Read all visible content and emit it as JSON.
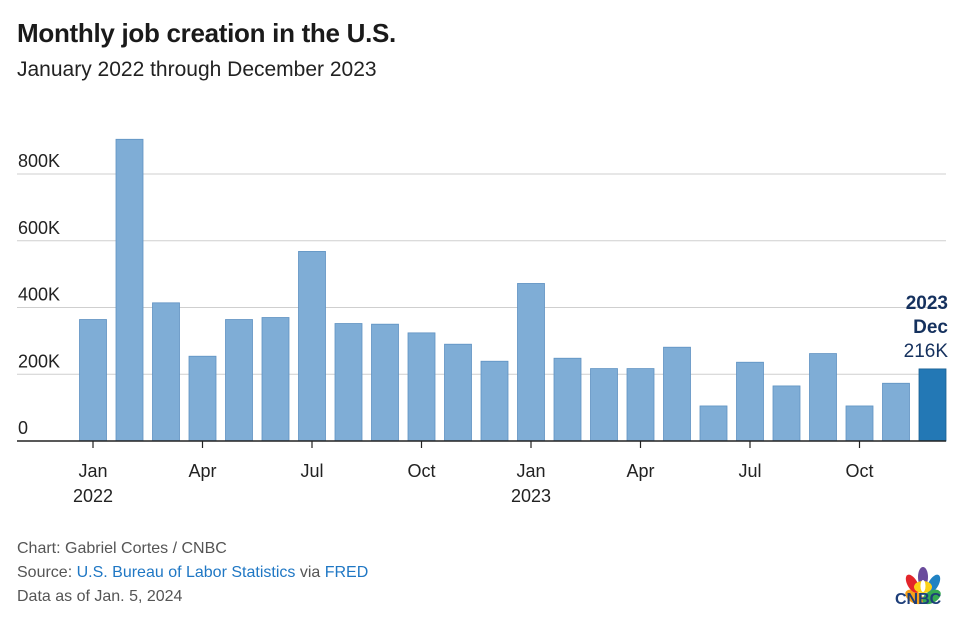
{
  "header": {
    "title": "Monthly job creation in the U.S.",
    "subtitle": "January 2022 through December 2023"
  },
  "chart_data": {
    "type": "bar",
    "title": "Monthly job creation in the U.S.",
    "subtitle": "January 2022 through December 2023",
    "xlabel": "",
    "ylabel": "",
    "ylim": [
      0,
      950000
    ],
    "yticks": [
      0,
      200000,
      400000,
      600000,
      800000
    ],
    "ytick_labels": [
      "0",
      "200K",
      "400K",
      "600K",
      "800K"
    ],
    "grid": true,
    "categories": [
      "Jan 2022",
      "Feb 2022",
      "Mar 2022",
      "Apr 2022",
      "May 2022",
      "Jun 2022",
      "Jul 2022",
      "Aug 2022",
      "Sep 2022",
      "Oct 2022",
      "Nov 2022",
      "Dec 2022",
      "Jan 2023",
      "Feb 2023",
      "Mar 2023",
      "Apr 2023",
      "May 2023",
      "Jun 2023",
      "Jul 2023",
      "Aug 2023",
      "Sep 2023",
      "Oct 2023",
      "Nov 2023",
      "Dec 2023"
    ],
    "x_tick_labels": [
      {
        "index": 0,
        "month": "Jan",
        "year": "2022"
      },
      {
        "index": 3,
        "month": "Apr",
        "year": ""
      },
      {
        "index": 6,
        "month": "Jul",
        "year": ""
      },
      {
        "index": 9,
        "month": "Oct",
        "year": ""
      },
      {
        "index": 12,
        "month": "Jan",
        "year": "2023"
      },
      {
        "index": 15,
        "month": "Apr",
        "year": ""
      },
      {
        "index": 18,
        "month": "Jul",
        "year": ""
      },
      {
        "index": 21,
        "month": "Oct",
        "year": ""
      }
    ],
    "values": [
      364000,
      904000,
      414000,
      254000,
      364000,
      370000,
      568000,
      352000,
      350000,
      324000,
      290000,
      239000,
      472000,
      248000,
      217000,
      217000,
      281000,
      105000,
      236000,
      165000,
      262000,
      105000,
      173000,
      216000
    ],
    "colors": {
      "default": "#7fadd6",
      "highlight": "#2378b5"
    },
    "highlight_index": 23,
    "annotation": {
      "year": "2023",
      "month": "Dec",
      "value_label": "216K"
    }
  },
  "footer": {
    "chart_credit": "Chart: Gabriel Cortes / CNBC",
    "source_prefix": "Source: ",
    "source_bls": "U.S. Bureau of Labor Statistics",
    "source_via": " via ",
    "source_fred": "FRED",
    "data_as_of": "Data as of Jan. 5, 2024"
  },
  "logo": {
    "text": "CNBC",
    "icon": "nbc-peacock-icon"
  }
}
